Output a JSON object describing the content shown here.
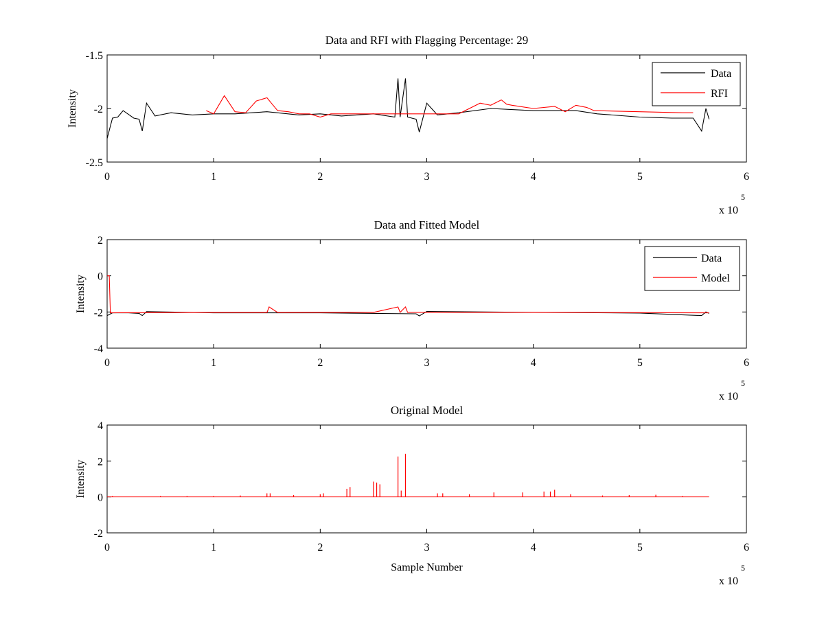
{
  "figure": {
    "subplots": [
      {
        "title": "Data and RFI with Flagging Percentage: 29",
        "xlabel": "",
        "ylabel": "Intensity",
        "x_exponent_base": "x 10",
        "x_exponent_power": "5",
        "legend": [
          {
            "label": "Data",
            "color": "#000000"
          },
          {
            "label": "RFI",
            "color": "#ff0000"
          }
        ]
      },
      {
        "title": "Data and Fitted Model",
        "xlabel": "",
        "ylabel": "Intensity",
        "x_exponent_base": "x 10",
        "x_exponent_power": "5",
        "legend": [
          {
            "label": "Data",
            "color": "#000000"
          },
          {
            "label": "Model",
            "color": "#ff0000"
          }
        ]
      },
      {
        "title": "Original Model",
        "xlabel": "Sample Number",
        "ylabel": "Intensity",
        "x_exponent_base": "x 10",
        "x_exponent_power": "5",
        "legend": []
      }
    ]
  },
  "chart_data": [
    {
      "type": "line",
      "title": "Data and RFI with Flagging Percentage: 29",
      "xlabel": "",
      "ylabel": "Intensity",
      "xlim": [
        0,
        6
      ],
      "ylim": [
        -2.5,
        -1.5
      ],
      "x_scale_note": "x 10^5",
      "xticks": [
        "0",
        "1",
        "2",
        "3",
        "4",
        "5",
        "6"
      ],
      "yticks": [
        "-2.5",
        "-2",
        "-1.5"
      ],
      "ytick_values": [
        -2.5,
        -2,
        -1.5
      ],
      "legend_position": "top-right",
      "series": [
        {
          "name": "Data",
          "color": "#000000",
          "x": [
            0,
            0.05,
            0.1,
            0.15,
            0.25,
            0.3,
            0.33,
            0.37,
            0.45,
            0.6,
            0.8,
            1.0,
            1.2,
            1.5,
            1.8,
            2.0,
            2.2,
            2.5,
            2.7,
            2.73,
            2.75,
            2.8,
            2.82,
            2.9,
            2.93,
            3.0,
            3.1,
            3.3,
            3.6,
            4.0,
            4.4,
            4.6,
            5.0,
            5.3,
            5.5,
            5.58,
            5.62,
            5.65
          ],
          "y": [
            -2.28,
            -2.09,
            -2.08,
            -2.02,
            -2.09,
            -2.1,
            -2.21,
            -1.95,
            -2.07,
            -2.04,
            -2.06,
            -2.05,
            -2.05,
            -2.03,
            -2.06,
            -2.05,
            -2.07,
            -2.05,
            -2.08,
            -1.72,
            -2.08,
            -1.72,
            -2.08,
            -2.1,
            -2.22,
            -1.95,
            -2.06,
            -2.04,
            -2.0,
            -2.02,
            -2.02,
            -2.05,
            -2.08,
            -2.09,
            -2.09,
            -2.21,
            -2.0,
            -2.1
          ]
        },
        {
          "name": "RFI",
          "color": "#ff0000",
          "x": [
            0.93,
            1.0,
            1.1,
            1.2,
            1.3,
            1.4,
            1.5,
            1.55,
            1.6,
            1.7,
            1.8,
            1.9,
            2.0,
            2.1,
            3.3,
            3.5,
            3.6,
            3.7,
            3.75,
            3.8,
            4.0,
            4.2,
            4.3,
            4.4,
            4.5,
            4.57,
            5.4,
            5.5
          ],
          "y": [
            -2.02,
            -2.05,
            -1.88,
            -2.03,
            -2.04,
            -1.93,
            -1.9,
            -1.96,
            -2.02,
            -2.03,
            -2.05,
            -2.05,
            -2.08,
            -2.05,
            -2.05,
            -1.95,
            -1.97,
            -1.92,
            -1.96,
            -1.97,
            -2.0,
            -1.98,
            -2.03,
            -1.97,
            -1.99,
            -2.02,
            -2.04,
            -2.04
          ]
        }
      ]
    },
    {
      "type": "line",
      "title": "Data and Fitted Model",
      "xlabel": "",
      "ylabel": "Intensity",
      "xlim": [
        0,
        6
      ],
      "ylim": [
        -4,
        2
      ],
      "x_scale_note": "x 10^5",
      "xticks": [
        "0",
        "1",
        "2",
        "3",
        "4",
        "5",
        "6"
      ],
      "yticks": [
        "-4",
        "-2",
        "0",
        "2"
      ],
      "ytick_values": [
        -4,
        -2,
        0,
        2
      ],
      "legend_position": "top-right",
      "series": [
        {
          "name": "Data",
          "color": "#000000",
          "x": [
            0,
            0.05,
            0.2,
            0.3,
            0.33,
            0.37,
            1.0,
            2.0,
            2.9,
            2.93,
            3.0,
            4.0,
            5.0,
            5.58,
            5.62,
            5.65
          ],
          "y": [
            -2.2,
            -2.05,
            -2.05,
            -2.08,
            -2.2,
            -1.98,
            -2.05,
            -2.05,
            -2.1,
            -2.22,
            -1.97,
            -2.02,
            -2.06,
            -2.2,
            -2.0,
            -2.08
          ]
        },
        {
          "name": "Model",
          "color": "#ff0000",
          "x": [
            0,
            0.02,
            0.03,
            0.1,
            0.9,
            1.5,
            1.52,
            1.6,
            2.5,
            2.73,
            2.75,
            2.8,
            2.82,
            3.5,
            4.5,
            5.65
          ],
          "y": [
            0.0,
            0.0,
            -2.05,
            -2.04,
            -2.03,
            -2.03,
            -1.72,
            -2.03,
            -2.02,
            -1.72,
            -2.02,
            -1.72,
            -2.02,
            -2.02,
            -2.03,
            -2.05
          ]
        }
      ]
    },
    {
      "type": "line",
      "title": "Original Model",
      "xlabel": "Sample Number",
      "ylabel": "Intensity",
      "xlim": [
        0,
        6
      ],
      "ylim": [
        -2,
        4
      ],
      "x_scale_note": "x 10^5",
      "xticks": [
        "0",
        "1",
        "2",
        "3",
        "4",
        "5",
        "6"
      ],
      "yticks": [
        "-2",
        "0",
        "2",
        "4"
      ],
      "ytick_values": [
        -2,
        0,
        2,
        4
      ],
      "series": [
        {
          "name": "",
          "color": "#ff0000",
          "baseline": 0,
          "x_end": 5.65,
          "spikes": [
            [
              0.05,
              0.05
            ],
            [
              0.5,
              0.05
            ],
            [
              0.75,
              0.05
            ],
            [
              1.0,
              0.05
            ],
            [
              1.25,
              0.08
            ],
            [
              1.5,
              0.2
            ],
            [
              1.53,
              0.2
            ],
            [
              1.75,
              0.1
            ],
            [
              2.0,
              0.15
            ],
            [
              2.03,
              0.2
            ],
            [
              2.25,
              0.45
            ],
            [
              2.28,
              0.55
            ],
            [
              2.5,
              0.85
            ],
            [
              2.53,
              0.8
            ],
            [
              2.56,
              0.7
            ],
            [
              2.73,
              2.25
            ],
            [
              2.76,
              0.35
            ],
            [
              2.8,
              2.4
            ],
            [
              3.1,
              0.2
            ],
            [
              3.15,
              0.2
            ],
            [
              3.4,
              0.15
            ],
            [
              3.63,
              0.25
            ],
            [
              3.9,
              0.25
            ],
            [
              4.1,
              0.3
            ],
            [
              4.16,
              0.3
            ],
            [
              4.2,
              0.4
            ],
            [
              4.35,
              0.15
            ],
            [
              4.65,
              0.08
            ],
            [
              4.9,
              0.1
            ],
            [
              5.15,
              0.12
            ],
            [
              5.4,
              0.05
            ]
          ]
        }
      ]
    }
  ]
}
